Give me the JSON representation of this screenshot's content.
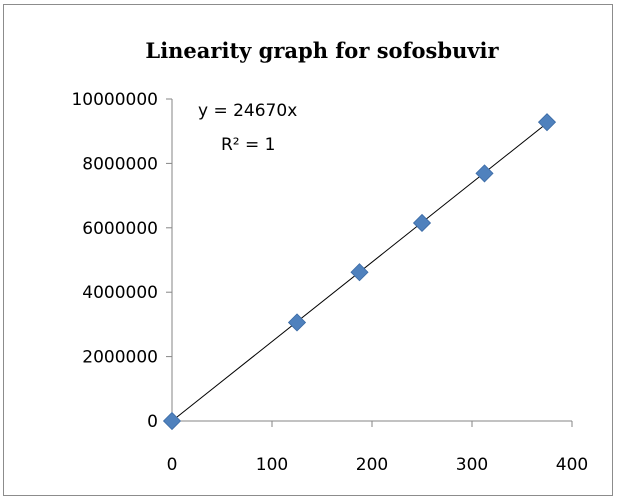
{
  "chart_data": {
    "type": "scatter",
    "title": "Linearity graph for sofosbuvir",
    "xlabel": "",
    "ylabel": "",
    "xlim": [
      0,
      400
    ],
    "ylim": [
      0,
      10000000
    ],
    "x_ticks": [
      "0",
      "100",
      "200",
      "300",
      "400"
    ],
    "y_ticks": [
      "0",
      "2000000",
      "4000000",
      "6000000",
      "8000000",
      "10000000"
    ],
    "series": [
      {
        "x": [
          0,
          125,
          187.5,
          250,
          312.5,
          375
        ],
        "y": [
          0,
          3060000,
          4620000,
          6150000,
          7690000,
          9280000
        ],
        "marker": "diamond",
        "color": "#4f81bd"
      }
    ],
    "trendline": {
      "type": "linear",
      "slope": 24670,
      "intercept": 0,
      "x_range": [
        0,
        375
      ],
      "equation": "y = 24670x",
      "r_squared": "R² = 1",
      "color": "#000000"
    },
    "grid": false,
    "legend": "none"
  }
}
